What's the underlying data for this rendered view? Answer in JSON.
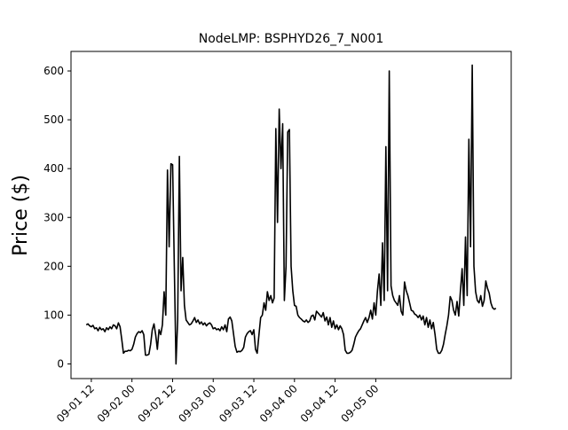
{
  "chart_data": {
    "type": "line",
    "title": "NodeLMP: BSPHYD26_7_N001",
    "xlabel": "",
    "ylabel": "Price ($)",
    "x_unit": "hours since 2024-09-01 00",
    "xlim": [
      6,
      136
    ],
    "ylim": [
      -30,
      640
    ],
    "grid": false,
    "legend": false,
    "line_color": "#000000",
    "y_ticks": [
      0,
      100,
      200,
      300,
      400,
      500,
      600
    ],
    "y_tick_labels": [
      "0",
      "100",
      "200",
      "300",
      "400",
      "500",
      "600"
    ],
    "x_ticks": [
      12,
      24,
      36,
      48,
      60,
      72,
      84,
      96
    ],
    "x_tick_labels": [
      "09-01 12",
      "09-02 00",
      "09-02 12",
      "09-03 00",
      "09-03 12",
      "09-04 00",
      "09-04 12",
      "09-05 00"
    ],
    "series": [
      {
        "points": [
          [
            10.5,
            80
          ],
          [
            11,
            82
          ],
          [
            11.5,
            78
          ],
          [
            12,
            76
          ],
          [
            12.5,
            79
          ],
          [
            13,
            72
          ],
          [
            13.5,
            74
          ],
          [
            14,
            68
          ],
          [
            14.5,
            75
          ],
          [
            15,
            70
          ],
          [
            15.5,
            72
          ],
          [
            16,
            66
          ],
          [
            16.5,
            74
          ],
          [
            17,
            70
          ],
          [
            17.5,
            76
          ],
          [
            18,
            72
          ],
          [
            18.5,
            80
          ],
          [
            19,
            78
          ],
          [
            19.5,
            72
          ],
          [
            20,
            84
          ],
          [
            20.5,
            76
          ],
          [
            21,
            50
          ],
          [
            21.5,
            22
          ],
          [
            22,
            26
          ],
          [
            22.5,
            26
          ],
          [
            23,
            28
          ],
          [
            23.5,
            27
          ],
          [
            24,
            30
          ],
          [
            24.5,
            40
          ],
          [
            25,
            55
          ],
          [
            25.5,
            62
          ],
          [
            26,
            66
          ],
          [
            26.5,
            64
          ],
          [
            27,
            68
          ],
          [
            27.5,
            60
          ],
          [
            28,
            18
          ],
          [
            28.5,
            18
          ],
          [
            29,
            20
          ],
          [
            29.5,
            40
          ],
          [
            30,
            70
          ],
          [
            30.5,
            82
          ],
          [
            31,
            60
          ],
          [
            31.5,
            30
          ],
          [
            32,
            70
          ],
          [
            32.5,
            60
          ],
          [
            33,
            80
          ],
          [
            33.5,
            148
          ],
          [
            34,
            100
          ],
          [
            34.5,
            397
          ],
          [
            35,
            240
          ],
          [
            35.5,
            410
          ],
          [
            36,
            408
          ],
          [
            36.5,
            200
          ],
          [
            37,
            0
          ],
          [
            37.5,
            90
          ],
          [
            38,
            425
          ],
          [
            38.5,
            150
          ],
          [
            39,
            218
          ],
          [
            39.5,
            120
          ],
          [
            40,
            90
          ],
          [
            40.5,
            85
          ],
          [
            41,
            80
          ],
          [
            41.5,
            82
          ],
          [
            42,
            88
          ],
          [
            42.5,
            95
          ],
          [
            43,
            85
          ],
          [
            43.5,
            90
          ],
          [
            44,
            82
          ],
          [
            44.5,
            86
          ],
          [
            45,
            80
          ],
          [
            45.5,
            84
          ],
          [
            46,
            78
          ],
          [
            46.5,
            82
          ],
          [
            47,
            84
          ],
          [
            47.5,
            80
          ],
          [
            48,
            72
          ],
          [
            48.5,
            74
          ],
          [
            49,
            70
          ],
          [
            49.5,
            72
          ],
          [
            50,
            68
          ],
          [
            50.5,
            76
          ],
          [
            51,
            70
          ],
          [
            51.5,
            80
          ],
          [
            52,
            66
          ],
          [
            52.5,
            92
          ],
          [
            53,
            96
          ],
          [
            53.5,
            88
          ],
          [
            54,
            62
          ],
          [
            54.5,
            36
          ],
          [
            55,
            24
          ],
          [
            55.5,
            26
          ],
          [
            56,
            25
          ],
          [
            56.5,
            28
          ],
          [
            57,
            34
          ],
          [
            57.5,
            55
          ],
          [
            58,
            62
          ],
          [
            58.5,
            66
          ],
          [
            59,
            68
          ],
          [
            59.5,
            60
          ],
          [
            60,
            70
          ],
          [
            60.5,
            30
          ],
          [
            61,
            22
          ],
          [
            61.5,
            60
          ],
          [
            62,
            95
          ],
          [
            62.5,
            100
          ],
          [
            63,
            125
          ],
          [
            63.5,
            110
          ],
          [
            64,
            148
          ],
          [
            64.5,
            130
          ],
          [
            65,
            140
          ],
          [
            65.5,
            125
          ],
          [
            66,
            135
          ],
          [
            66.5,
            482
          ],
          [
            67,
            290
          ],
          [
            67.5,
            522
          ],
          [
            68,
            400
          ],
          [
            68.5,
            492
          ],
          [
            69,
            130
          ],
          [
            69.5,
            200
          ],
          [
            70,
            475
          ],
          [
            70.5,
            480
          ],
          [
            71,
            200
          ],
          [
            71.5,
            150
          ],
          [
            72,
            120
          ],
          [
            72.5,
            118
          ],
          [
            73,
            100
          ],
          [
            73.5,
            95
          ],
          [
            74,
            92
          ],
          [
            74.5,
            88
          ],
          [
            75,
            86
          ],
          [
            75.5,
            90
          ],
          [
            76,
            85
          ],
          [
            76.5,
            88
          ],
          [
            77,
            98
          ],
          [
            77.5,
            100
          ],
          [
            78,
            90
          ],
          [
            78.5,
            108
          ],
          [
            79,
            104
          ],
          [
            79.5,
            100
          ],
          [
            80,
            96
          ],
          [
            80.5,
            105
          ],
          [
            81,
            88
          ],
          [
            81.5,
            96
          ],
          [
            82,
            80
          ],
          [
            82.5,
            95
          ],
          [
            83,
            75
          ],
          [
            83.5,
            88
          ],
          [
            84,
            72
          ],
          [
            84.5,
            80
          ],
          [
            85,
            70
          ],
          [
            85.5,
            78
          ],
          [
            86,
            72
          ],
          [
            86.5,
            60
          ],
          [
            87,
            28
          ],
          [
            87.5,
            22
          ],
          [
            88,
            22
          ],
          [
            88.5,
            24
          ],
          [
            89,
            28
          ],
          [
            89.5,
            40
          ],
          [
            90,
            55
          ],
          [
            90.5,
            62
          ],
          [
            91,
            68
          ],
          [
            91.5,
            72
          ],
          [
            92,
            80
          ],
          [
            92.5,
            88
          ],
          [
            93,
            95
          ],
          [
            93.5,
            85
          ],
          [
            94,
            95
          ],
          [
            94.5,
            110
          ],
          [
            95,
            92
          ],
          [
            95.5,
            125
          ],
          [
            96,
            100
          ],
          [
            96.5,
            150
          ],
          [
            97,
            184
          ],
          [
            97.5,
            120
          ],
          [
            98,
            248
          ],
          [
            98.5,
            130
          ],
          [
            99,
            445
          ],
          [
            99.5,
            150
          ],
          [
            100,
            600
          ],
          [
            100.5,
            160
          ],
          [
            101,
            140
          ],
          [
            101.5,
            130
          ],
          [
            102,
            125
          ],
          [
            102.5,
            120
          ],
          [
            103,
            140
          ],
          [
            103.5,
            108
          ],
          [
            104,
            100
          ],
          [
            104.5,
            168
          ],
          [
            105,
            150
          ],
          [
            105.5,
            140
          ],
          [
            106,
            125
          ],
          [
            106.5,
            110
          ],
          [
            107,
            108
          ],
          [
            107.5,
            102
          ],
          [
            108,
            100
          ],
          [
            108.5,
            95
          ],
          [
            109,
            100
          ],
          [
            109.5,
            90
          ],
          [
            110,
            98
          ],
          [
            110.5,
            80
          ],
          [
            111,
            95
          ],
          [
            111.5,
            75
          ],
          [
            112,
            90
          ],
          [
            112.5,
            72
          ],
          [
            113,
            85
          ],
          [
            113.5,
            60
          ],
          [
            114,
            30
          ],
          [
            114.5,
            22
          ],
          [
            115,
            22
          ],
          [
            115.5,
            28
          ],
          [
            116,
            40
          ],
          [
            116.5,
            60
          ],
          [
            117,
            78
          ],
          [
            117.5,
            100
          ],
          [
            118,
            138
          ],
          [
            118.5,
            130
          ],
          [
            119,
            110
          ],
          [
            119.5,
            100
          ],
          [
            120,
            128
          ],
          [
            120.5,
            98
          ],
          [
            121,
            150
          ],
          [
            121.5,
            195
          ],
          [
            122,
            120
          ],
          [
            122.5,
            260
          ],
          [
            123,
            140
          ],
          [
            123.5,
            460
          ],
          [
            124,
            240
          ],
          [
            124.5,
            612
          ],
          [
            125,
            200
          ],
          [
            125.5,
            148
          ],
          [
            126,
            130
          ],
          [
            126.5,
            125
          ],
          [
            127,
            140
          ],
          [
            127.5,
            118
          ],
          [
            128,
            130
          ],
          [
            128.5,
            170
          ],
          [
            129,
            155
          ],
          [
            129.5,
            145
          ],
          [
            130,
            125
          ],
          [
            130.5,
            115
          ],
          [
            131,
            112
          ],
          [
            131.5,
            114
          ]
        ]
      }
    ]
  }
}
